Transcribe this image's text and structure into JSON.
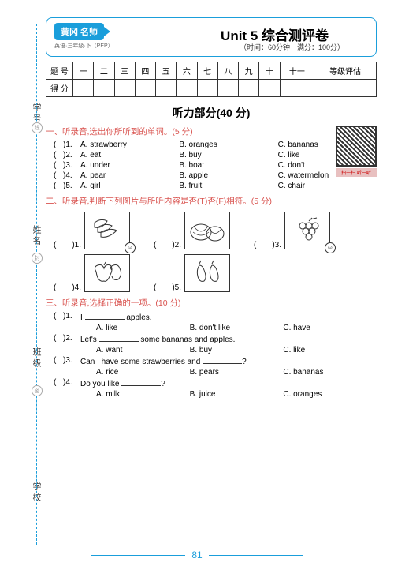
{
  "side": {
    "labels": [
      "学 号",
      "姓 名",
      "班 级",
      "学 校"
    ],
    "rings": [
      "线",
      "封",
      "密"
    ]
  },
  "header": {
    "badge": "黄冈\n名师",
    "sub": "英语·三年级·下（PEP）",
    "title": "Unit 5  综合测评卷",
    "timing": "（时间：60分钟　满分：100分）"
  },
  "score": {
    "row1": [
      "题  号",
      "一",
      "二",
      "三",
      "四",
      "五",
      "六",
      "七",
      "八",
      "九",
      "十",
      "十一",
      "等级评估"
    ],
    "row2": [
      "得  分",
      "",
      "",
      "",
      "",
      "",
      "",
      "",
      "",
      "",
      "",
      "",
      ""
    ]
  },
  "listen_title": "听力部分(40 分)",
  "qr_caption": "扫一扫 听一听",
  "s1": {
    "instr": "一、听录音,选出你所听到的单词。(5 分)",
    "items": [
      {
        "n": "1.",
        "a": "A. strawberry",
        "b": "B. oranges",
        "c": "C. bananas"
      },
      {
        "n": "2.",
        "a": "A. eat",
        "b": "B. buy",
        "c": "C. like"
      },
      {
        "n": "3.",
        "a": "A. under",
        "b": "B. boat",
        "c": "C. don't"
      },
      {
        "n": "4.",
        "a": "A. pear",
        "b": "B. apple",
        "c": "C. watermelon"
      },
      {
        "n": "5.",
        "a": "A. girl",
        "b": "B. fruit",
        "c": "C. chair"
      }
    ]
  },
  "s2": {
    "instr": "二、听录音,判断下列图片与所听内容是否(T)否(F)相符。(5 分)"
  },
  "s3": {
    "instr": "三、听录音,选择正确的一项。(10 分)",
    "items": [
      {
        "n": "1.",
        "stem_pre": "I ",
        "stem_post": " apples.",
        "a": "A. like",
        "b": "B. don't like",
        "c": "C. have"
      },
      {
        "n": "2.",
        "stem_pre": "Let's ",
        "stem_post": " some bananas and apples.",
        "a": "A. want",
        "b": "B. buy",
        "c": "C. like"
      },
      {
        "n": "3.",
        "stem_pre": "Can I have some strawberries and ",
        "stem_post": "?",
        "a": "A. rice",
        "b": "B. pears",
        "c": "C. bananas"
      },
      {
        "n": "4.",
        "stem_pre": "Do you like ",
        "stem_post": "?",
        "a": "A. milk",
        "b": "B. juice",
        "c": "C. oranges"
      }
    ]
  },
  "page_num": "81"
}
